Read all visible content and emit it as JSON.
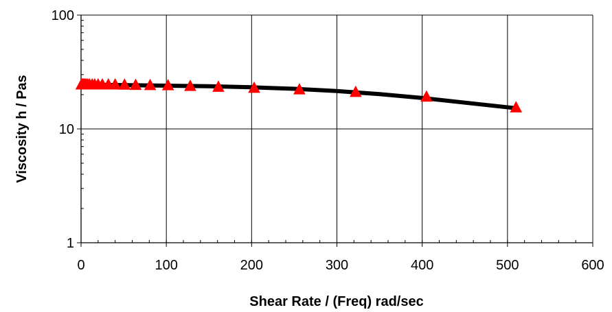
{
  "chart_data": {
    "type": "line",
    "title": "",
    "xlabel": "Shear Rate / (Freq) rad/sec",
    "ylabel": "Viscosity h / Pas",
    "xlim": [
      0,
      600
    ],
    "ylim": [
      1,
      100
    ],
    "yscale": "log",
    "x_ticks": [
      0,
      100,
      200,
      300,
      400,
      500,
      600
    ],
    "y_ticks": [
      1,
      10,
      100
    ],
    "x_tick_labels": [
      "0",
      "100",
      "200",
      "300",
      "400",
      "500",
      "600"
    ],
    "y_tick_labels": [
      "1",
      "10",
      "100"
    ],
    "grid": true,
    "legend": "none",
    "series": [
      {
        "kind": "line",
        "color": "#000000",
        "x": [
          0.5,
          5,
          10,
          20,
          40,
          60,
          80,
          100,
          150,
          200,
          250,
          300,
          350,
          400,
          450,
          510
        ],
        "y": [
          24.3,
          24.3,
          24.3,
          24.3,
          24.3,
          24.2,
          24.1,
          24.0,
          23.7,
          23.2,
          22.5,
          21.5,
          20.2,
          18.7,
          17.0,
          15.2
        ]
      },
      {
        "kind": "markers",
        "marker": "triangle",
        "color": "#ff0000",
        "x": [
          0.5,
          1,
          2,
          3,
          4,
          5,
          6.5,
          8,
          10,
          13,
          16,
          20,
          25,
          32,
          40,
          51,
          64,
          81,
          102,
          128,
          161,
          203,
          256,
          322,
          405,
          510
        ],
        "y": [
          24.3,
          24.3,
          24.3,
          24.3,
          24.3,
          24.3,
          24.3,
          24.3,
          24.3,
          24.3,
          24.3,
          24.3,
          24.3,
          24.3,
          24.3,
          24.2,
          24.1,
          24.0,
          23.9,
          23.6,
          23.2,
          22.7,
          22.0,
          20.9,
          19.0,
          15.3
        ]
      }
    ]
  }
}
